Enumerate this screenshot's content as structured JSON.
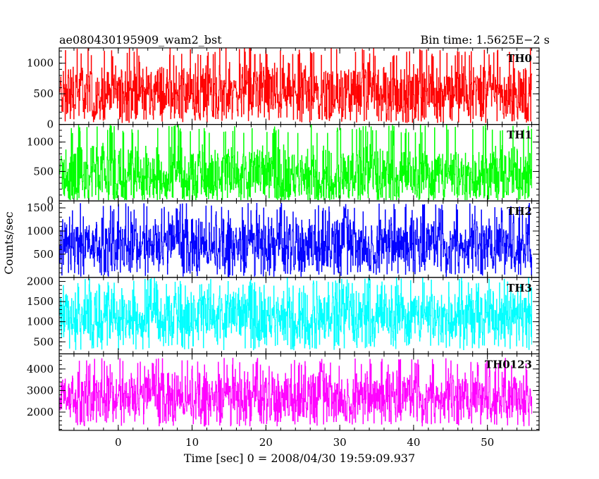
{
  "header": {
    "title": "ae080430195909_wam2_bst",
    "bin_time": "Bin time: 1.5625E−2 s"
  },
  "chart_data": {
    "type": "line",
    "title": "ae080430195909_wam2_bst",
    "xlabel": "Time [sec] 0 = 2008/04/30 19:59:09.937",
    "ylabel": "Counts/sec",
    "xlim": [
      -8,
      57
    ],
    "x_ticks": [
      0,
      10,
      20,
      30,
      40,
      50
    ],
    "x_tick_labels": [
      "0",
      "10",
      "20",
      "30",
      "40",
      "50"
    ],
    "x_data_range": [
      -7.9,
      56.0
    ],
    "panels": [
      {
        "name": "TH0",
        "color": "#ff0000",
        "ylim": [
          0,
          1250
        ],
        "y_ticks": [
          0,
          500,
          1000
        ],
        "y_tick_labels": [
          "0",
          "500",
          "1000"
        ],
        "series": [
          {
            "name": "TH0",
            "mean": 520,
            "min": 30,
            "max": 1250
          }
        ]
      },
      {
        "name": "TH1",
        "color": "#00ff00",
        "ylim": [
          0,
          1300
        ],
        "y_ticks": [
          0,
          500,
          1000
        ],
        "y_tick_labels": [
          "0",
          "500",
          "1000"
        ],
        "series": [
          {
            "name": "TH1",
            "mean": 450,
            "min": 20,
            "max": 1300
          }
        ]
      },
      {
        "name": "TH2",
        "color": "#0000ff",
        "ylim": [
          0,
          1650
        ],
        "y_ticks": [
          500,
          1000,
          1500
        ],
        "y_tick_labels": [
          "500",
          "1000",
          "1500"
        ],
        "series": [
          {
            "name": "TH2",
            "mean": 700,
            "min": 20,
            "max": 1600
          }
        ]
      },
      {
        "name": "TH3",
        "color": "#00ffff",
        "ylim": [
          200,
          2100
        ],
        "y_ticks": [
          500,
          1000,
          1500,
          2000
        ],
        "y_tick_labels": [
          "500",
          "1000",
          "1500",
          "2000"
        ],
        "series": [
          {
            "name": "TH3",
            "mean": 1150,
            "min": 300,
            "max": 2100
          }
        ]
      },
      {
        "name": "TH0123",
        "color": "#ff00ff",
        "ylim": [
          1150,
          4700
        ],
        "y_ticks": [
          2000,
          3000,
          4000
        ],
        "y_tick_labels": [
          "2000",
          "3000",
          "4000"
        ],
        "series": [
          {
            "name": "TH0123",
            "mean": 2700,
            "min": 1350,
            "max": 4500
          }
        ]
      }
    ]
  }
}
